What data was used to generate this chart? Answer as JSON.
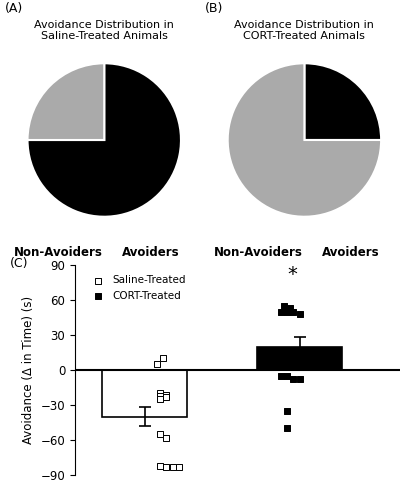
{
  "pie_A_values": [
    75,
    25
  ],
  "pie_A_colors": [
    "#000000",
    "#aaaaaa"
  ],
  "pie_A_title": "Avoidance Distribution in\nSaline-Treated Animals",
  "pie_A_labels": [
    "Non-Avoiders",
    "Avoiders"
  ],
  "pie_A_startangle": 90,
  "pie_A_counterclock": false,
  "pie_B_values": [
    25,
    75
  ],
  "pie_B_colors": [
    "#000000",
    "#aaaaaa"
  ],
  "pie_B_title": "Avoidance Distribution in\nCORT-Treated Animals",
  "pie_B_labels": [
    "Non-Avoiders",
    "Avoiders"
  ],
  "pie_B_startangle": 90,
  "pie_B_counterclock": false,
  "bar_means": [
    -40,
    20
  ],
  "bar_sems": [
    8,
    8
  ],
  "bar_colors": [
    "#ffffff",
    "#000000"
  ],
  "bar_edgecolors": [
    "#000000",
    "#000000"
  ],
  "saline_points": [
    10,
    5,
    -20,
    -21,
    -22,
    -23,
    -25,
    -55,
    -58,
    -82,
    -83,
    -83,
    -83
  ],
  "cort_points": [
    55,
    53,
    50,
    50,
    50,
    48,
    -5,
    -5,
    -8,
    -8,
    -35,
    -50
  ],
  "ylabel": "Avoidance (Δ in Time) (s)",
  "ylim": [
    -90,
    90
  ],
  "yticks": [
    -90,
    -60,
    -30,
    0,
    30,
    60,
    90
  ],
  "panel_c_label": "(C)",
  "panel_a_label": "(A)",
  "panel_b_label": "(B)",
  "legend_labels": [
    "Saline-Treated",
    "CORT-Treated"
  ],
  "star_label": "*"
}
